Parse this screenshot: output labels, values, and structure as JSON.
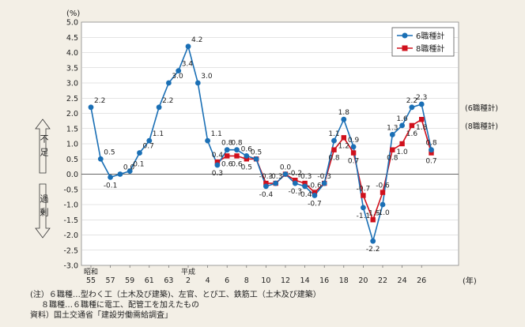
{
  "chart_data": {
    "type": "line",
    "unit_label": "(%)",
    "x_unit_label": "(年)",
    "ylim": [
      -3.0,
      5.0
    ],
    "y_ticks": [
      "5.0",
      "4.5",
      "4.0",
      "3.5",
      "3.0",
      "2.5",
      "2.0",
      "1.5",
      "1.0",
      "0.5",
      "0.0",
      "-0.5",
      "-1.0",
      "-1.5",
      "-2.0",
      "-2.5",
      "-3.0"
    ],
    "x_tick_labels": [
      {
        "index": 0,
        "label": "55",
        "era": "昭和"
      },
      {
        "index": 2,
        "label": "57"
      },
      {
        "index": 4,
        "label": "59"
      },
      {
        "index": 6,
        "label": "61"
      },
      {
        "index": 8,
        "label": "63"
      },
      {
        "index": 10,
        "label": "2",
        "era": "平成"
      },
      {
        "index": 12,
        "label": "4"
      },
      {
        "index": 14,
        "label": "6"
      },
      {
        "index": 16,
        "label": "8"
      },
      {
        "index": 18,
        "label": "10"
      },
      {
        "index": 20,
        "label": "12"
      },
      {
        "index": 22,
        "label": "14"
      },
      {
        "index": 24,
        "label": "16"
      },
      {
        "index": 26,
        "label": "18"
      },
      {
        "index": 28,
        "label": "20"
      },
      {
        "index": 30,
        "label": "22"
      },
      {
        "index": 32,
        "label": "24"
      },
      {
        "index": 34,
        "label": "26"
      }
    ],
    "series": [
      {
        "name": "6職種計",
        "color": "#1a6fb5",
        "marker": "circle",
        "start_index": 0,
        "values": [
          2.2,
          0.5,
          -0.1,
          0.0,
          0.1,
          0.7,
          1.1,
          2.2,
          3.0,
          3.4,
          4.2,
          3.0,
          1.1,
          0.3,
          0.8,
          0.8,
          0.6,
          0.5,
          -0.4,
          -0.3,
          0.0,
          -0.3,
          -0.4,
          -0.7,
          -0.3,
          1.1,
          1.8,
          0.9,
          -1.1,
          -2.2,
          -1.0,
          1.3,
          1.6,
          2.2,
          2.3,
          0.8
        ],
        "end_label": "(6職種計)"
      },
      {
        "name": "8職種計",
        "color": "#d0101c",
        "marker": "square",
        "start_index": 13,
        "values": [
          0.4,
          0.6,
          0.6,
          0.5,
          0.5,
          -0.3,
          -0.3,
          0.0,
          -0.2,
          -0.3,
          -0.6,
          -0.3,
          0.8,
          1.2,
          0.7,
          -0.7,
          -1.5,
          -0.6,
          0.8,
          1.0,
          1.6,
          1.8,
          0.7
        ],
        "end_label": "(8職種計)"
      }
    ],
    "legend_position": "top-right",
    "side_labels": {
      "shortage": "不足",
      "surplus": "過剰"
    }
  },
  "notes": {
    "line1": "(注）６職種…型わく工（土木及び建築)、左官、とび工、鉄筋工（土木及び建築）",
    "line2": "８職種…６職種に電工、配管工を加えたもの",
    "line3": "資料）国土交通省「建設労働需給調査」"
  }
}
